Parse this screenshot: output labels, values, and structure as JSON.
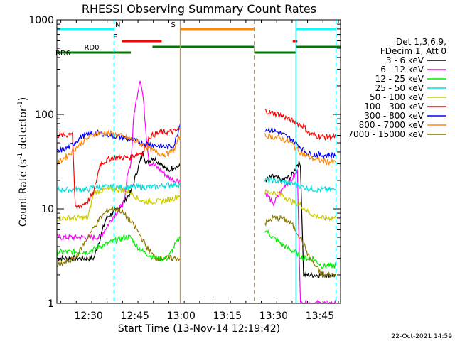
{
  "chart_data": {
    "type": "line",
    "title": "RHESSI Observing Summary Count Rates",
    "xlabel": "Start Time (13-Nov-14 12:19:42)",
    "ylabel_main": "Count Rate (s",
    "ylabel_exp1": "-1",
    "ylabel_mid": " detector",
    "ylabel_exp2": "-1",
    "ylabel_end": ")",
    "ylog": true,
    "ylim": [
      1,
      1000
    ],
    "xlim_minutes": [
      0,
      92
    ],
    "x_ticks": [
      {
        "label": "12:30",
        "min": 10.3
      },
      {
        "label": "12:45",
        "min": 25.3
      },
      {
        "label": "13:00",
        "min": 40.3
      },
      {
        "label": "13:15",
        "min": 55.3
      },
      {
        "label": "13:30",
        "min": 70.3
      },
      {
        "label": "13:45",
        "min": 85.3
      }
    ],
    "y_ticks": [
      {
        "label": "1",
        "value": 1
      },
      {
        "label": "10",
        "value": 10
      },
      {
        "label": "100",
        "value": 100
      },
      {
        "label": "1000",
        "value": 1000
      }
    ],
    "legend_header": [
      "Det 1,3,6,9,",
      "FDecim 1, Att 0"
    ],
    "legend_position": "right",
    "series": [
      {
        "name": "3 - 6 keV",
        "color": "#000000",
        "pre": [
          [
            0,
            3
          ],
          [
            12,
            3
          ],
          [
            16,
            8
          ],
          [
            20,
            10
          ],
          [
            24,
            15
          ],
          [
            26,
            25
          ],
          [
            28,
            40
          ],
          [
            29,
            30
          ],
          [
            31,
            35
          ],
          [
            34,
            30
          ],
          [
            36,
            25
          ],
          [
            38,
            28
          ],
          [
            40,
            28
          ]
        ],
        "post": [
          [
            67.5,
            20
          ],
          [
            70,
            22
          ],
          [
            73,
            20
          ],
          [
            76,
            22
          ],
          [
            78,
            30
          ],
          [
            79,
            30
          ],
          [
            80,
            2
          ],
          [
            82,
            2
          ],
          [
            84,
            2
          ],
          [
            86,
            2
          ],
          [
            88,
            2
          ],
          [
            90.5,
            2
          ]
        ]
      },
      {
        "name": "6 - 12 keV",
        "color": "#ff00ff",
        "pre": [
          [
            0,
            5
          ],
          [
            14,
            5
          ],
          [
            18,
            8
          ],
          [
            22,
            12
          ],
          [
            23,
            25
          ],
          [
            24,
            30
          ],
          [
            25,
            100
          ],
          [
            27,
            240
          ],
          [
            28,
            150
          ],
          [
            29,
            60
          ],
          [
            30,
            30
          ],
          [
            31,
            30
          ],
          [
            34,
            25
          ],
          [
            36,
            22
          ],
          [
            38,
            20
          ],
          [
            40,
            20
          ]
        ],
        "post": [
          [
            67.5,
            15
          ],
          [
            69,
            13
          ],
          [
            70,
            11
          ],
          [
            72,
            14
          ],
          [
            74,
            18
          ],
          [
            76,
            20
          ],
          [
            78,
            25
          ],
          [
            79,
            1
          ],
          [
            90.5,
            1
          ]
        ]
      },
      {
        "name": "12 - 25 keV",
        "color": "#00ee00",
        "pre": [
          [
            0,
            3.5
          ],
          [
            10,
            3.5
          ],
          [
            14,
            4
          ],
          [
            18,
            4.5
          ],
          [
            22,
            5
          ],
          [
            24,
            5
          ],
          [
            26,
            4
          ],
          [
            28,
            3.5
          ],
          [
            32,
            3
          ],
          [
            36,
            3
          ],
          [
            38,
            4
          ],
          [
            40,
            5
          ]
        ],
        "post": [
          [
            67.5,
            6
          ],
          [
            70,
            5
          ],
          [
            74,
            4
          ],
          [
            77,
            3.5
          ],
          [
            80,
            3
          ],
          [
            83,
            3
          ],
          [
            86,
            2.5
          ],
          [
            90.5,
            2.5
          ]
        ]
      },
      {
        "name": "25 - 50 keV",
        "color": "#00dddd",
        "pre": [
          [
            0,
            16
          ],
          [
            6,
            16
          ],
          [
            10,
            16
          ],
          [
            12,
            17
          ],
          [
            18,
            17
          ],
          [
            22,
            17
          ],
          [
            24,
            17
          ],
          [
            26,
            17
          ],
          [
            28,
            17
          ],
          [
            30,
            17
          ],
          [
            32,
            17
          ],
          [
            36,
            18
          ],
          [
            40,
            18
          ]
        ],
        "post": [
          [
            67.5,
            20
          ],
          [
            70,
            20
          ],
          [
            74,
            19
          ],
          [
            78,
            18
          ],
          [
            80,
            17
          ],
          [
            84,
            16
          ],
          [
            88,
            16
          ],
          [
            90.5,
            16
          ]
        ]
      },
      {
        "name": "50 - 100 keV",
        "color": "#cccc00",
        "pre": [
          [
            0,
            8
          ],
          [
            6,
            8
          ],
          [
            10,
            8
          ],
          [
            12,
            15
          ],
          [
            16,
            16
          ],
          [
            20,
            16
          ],
          [
            24,
            15
          ],
          [
            26,
            13
          ],
          [
            28,
            12
          ],
          [
            30,
            12
          ],
          [
            34,
            12
          ],
          [
            38,
            13
          ],
          [
            40,
            14
          ]
        ],
        "post": [
          [
            67.5,
            15
          ],
          [
            70,
            15
          ],
          [
            73,
            14
          ],
          [
            76,
            12
          ],
          [
            79,
            11
          ],
          [
            82,
            9
          ],
          [
            86,
            8
          ],
          [
            90.5,
            8
          ]
        ]
      },
      {
        "name": "100 - 300 keV",
        "color": "#ff0000",
        "pre": [
          [
            0,
            60
          ],
          [
            3,
            60
          ],
          [
            5,
            65
          ],
          [
            6,
            10
          ],
          [
            10,
            12
          ],
          [
            12,
            15
          ],
          [
            14,
            30
          ],
          [
            18,
            35
          ],
          [
            22,
            35
          ],
          [
            24,
            35
          ],
          [
            26,
            38
          ],
          [
            28,
            40
          ],
          [
            30,
            58
          ],
          [
            32,
            62
          ],
          [
            34,
            65
          ],
          [
            36,
            65
          ],
          [
            38,
            66
          ],
          [
            40,
            70
          ]
        ],
        "post": [
          [
            67.5,
            110
          ],
          [
            69,
            105
          ],
          [
            72,
            100
          ],
          [
            75,
            90
          ],
          [
            78,
            80
          ],
          [
            80,
            75
          ],
          [
            82,
            62
          ],
          [
            86,
            58
          ],
          [
            88,
            58
          ],
          [
            90.5,
            58
          ]
        ]
      },
      {
        "name": "300 - 800 keV",
        "color": "#0000ff",
        "pre": [
          [
            0,
            40
          ],
          [
            4,
            45
          ],
          [
            8,
            58
          ],
          [
            12,
            64
          ],
          [
            16,
            62
          ],
          [
            20,
            58
          ],
          [
            24,
            54
          ],
          [
            28,
            50
          ],
          [
            32,
            47
          ],
          [
            36,
            45
          ],
          [
            38,
            47
          ],
          [
            40,
            80
          ]
        ],
        "post": [
          [
            67.5,
            70
          ],
          [
            70,
            68
          ],
          [
            73,
            62
          ],
          [
            76,
            55
          ],
          [
            78,
            48
          ],
          [
            80,
            42
          ],
          [
            82,
            38
          ],
          [
            86,
            37
          ],
          [
            90.5,
            37
          ]
        ]
      },
      {
        "name": "800 - 7000 keV",
        "color": "#ff8800",
        "pre": [
          [
            0,
            30
          ],
          [
            4,
            38
          ],
          [
            8,
            50
          ],
          [
            12,
            62
          ],
          [
            16,
            64
          ],
          [
            20,
            60
          ],
          [
            24,
            55
          ],
          [
            28,
            47
          ],
          [
            32,
            40
          ],
          [
            34,
            38
          ],
          [
            36,
            38
          ],
          [
            38,
            42
          ],
          [
            40,
            60
          ]
        ],
        "post": [
          [
            67.5,
            60
          ],
          [
            70,
            58
          ],
          [
            73,
            55
          ],
          [
            76,
            50
          ],
          [
            78,
            42
          ],
          [
            80,
            38
          ],
          [
            82,
            35
          ],
          [
            86,
            32
          ],
          [
            90.5,
            31
          ]
        ]
      },
      {
        "name": "7000 - 15000 keV",
        "color": "#887700",
        "pre": [
          [
            0,
            2.5
          ],
          [
            6,
            3
          ],
          [
            10,
            5
          ],
          [
            14,
            8
          ],
          [
            17,
            10
          ],
          [
            20,
            10
          ],
          [
            23,
            8
          ],
          [
            26,
            6
          ],
          [
            29,
            4
          ],
          [
            32,
            3
          ],
          [
            36,
            3
          ],
          [
            40,
            3
          ]
        ],
        "post": [
          [
            67.5,
            7
          ],
          [
            70,
            8
          ],
          [
            73,
            8
          ],
          [
            76,
            7
          ],
          [
            79,
            5
          ],
          [
            82,
            3
          ],
          [
            86,
            2
          ],
          [
            90.5,
            2
          ]
        ]
      }
    ],
    "orbit_bars": [
      {
        "label": "N",
        "color": "#00ffff",
        "row": "top",
        "segments": [
          [
            0,
            18.5
          ],
          [
            77.5,
            90.5
          ]
        ]
      },
      {
        "label": "S",
        "color": "#ff8800",
        "row": "top",
        "segments": [
          [
            40,
            64
          ]
        ]
      },
      {
        "label": "F",
        "color": "#ff0000",
        "row": "mid",
        "segments": [
          [
            21,
            34
          ],
          [
            76.5,
            78
          ]
        ]
      },
      {
        "label": "RD0",
        "color": "#007700",
        "row": "mid2",
        "segments": [
          [
            31,
            64
          ],
          [
            77.5,
            92
          ]
        ]
      },
      {
        "label": "RD6",
        "color": "#007700",
        "row": "low",
        "segments": [
          [
            0,
            24
          ],
          [
            64,
            77.5
          ]
        ]
      }
    ],
    "vlines": [
      {
        "min": 18.5,
        "color": "#00ffff",
        "style": "dashed"
      },
      {
        "min": 40.0,
        "color": "#ff8800",
        "style": "solid"
      },
      {
        "min": 64.0,
        "color": "#ff8800",
        "style": "dashed"
      },
      {
        "min": 77.5,
        "color": "#00ffff",
        "style": "solid"
      },
      {
        "min": 90.5,
        "color": "#00ffff",
        "style": "dashed"
      }
    ]
  },
  "footer": {
    "timestamp": "22-Oct-2021 14:59"
  }
}
